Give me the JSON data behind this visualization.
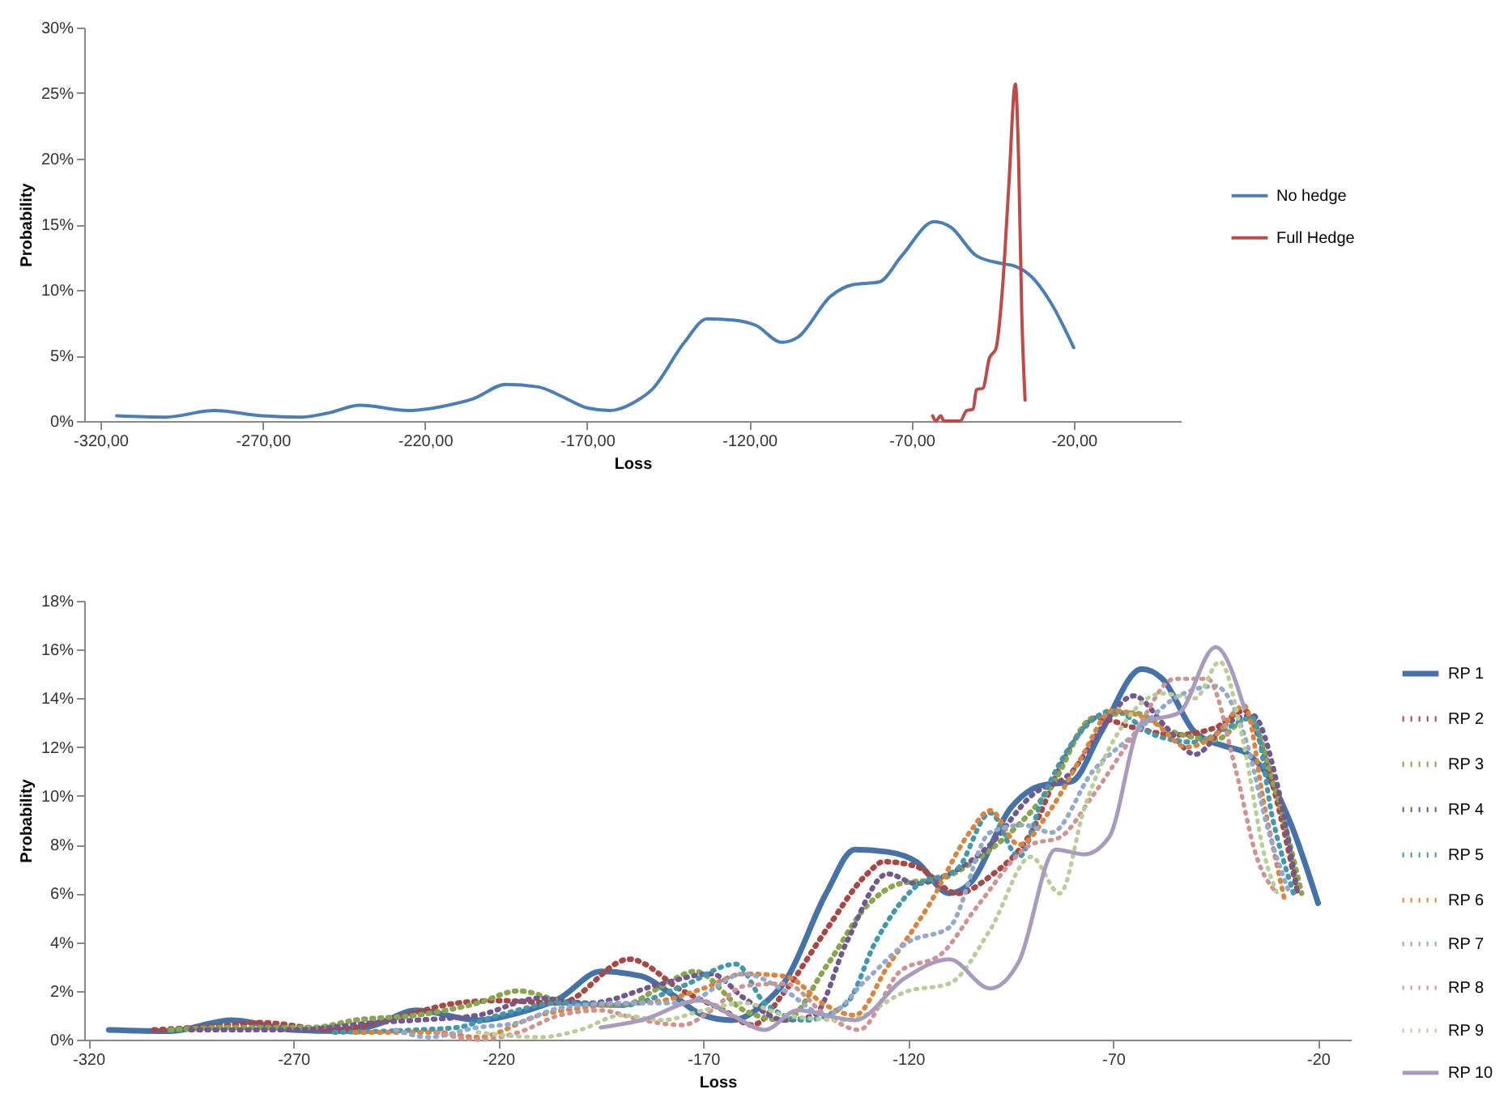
{
  "chart_data": [
    {
      "type": "line",
      "xlabel": "Loss",
      "ylabel": "Probability",
      "xlim": [
        -325,
        13
      ],
      "ylim": [
        0,
        30
      ],
      "xticks": [
        {
          "value": -320,
          "label": "-320,00"
        },
        {
          "value": -270,
          "label": "-270,00"
        },
        {
          "value": -220,
          "label": "-220,00"
        },
        {
          "value": -170,
          "label": "-170,00"
        },
        {
          "value": -120,
          "label": "-120,00"
        },
        {
          "value": -70,
          "label": "-70,00"
        },
        {
          "value": -20,
          "label": "-20,00"
        }
      ],
      "yticks": [
        {
          "value": 0,
          "label": "0%"
        },
        {
          "value": 5,
          "label": "5%"
        },
        {
          "value": 10,
          "label": "10%"
        },
        {
          "value": 15,
          "label": "15%"
        },
        {
          "value": 20,
          "label": "20%"
        },
        {
          "value": 25,
          "label": "25%"
        },
        {
          "value": 30,
          "label": "30%"
        }
      ],
      "grid": false,
      "legend": "right",
      "line_style": "solid",
      "series": [
        {
          "name": "No hedge",
          "color": "#4a7ebb",
          "x": [
            -315,
            -300,
            -285,
            -270,
            -258,
            -250,
            -240,
            -225,
            -215,
            -205,
            -195,
            -185,
            -178,
            -170,
            -163,
            -155,
            -150,
            -140,
            -133,
            -125,
            -118,
            -110,
            -105,
            -95,
            -88,
            -80,
            -73,
            -63,
            -58,
            -50,
            -42,
            -38,
            -33,
            -27,
            -20
          ],
          "values": [
            0.4,
            0.3,
            0.8,
            0.4,
            0.3,
            0.6,
            1.2,
            0.8,
            1.1,
            1.7,
            2.8,
            2.6,
            1.9,
            1.0,
            0.8,
            1.5,
            2.4,
            6.0,
            7.8,
            7.7,
            7.3,
            6.0,
            6.4,
            9.5,
            10.4,
            10.6,
            12.6,
            15.2,
            14.8,
            12.6,
            12.0,
            11.8,
            11.0,
            9.0,
            5.6
          ]
        },
        {
          "name": "Full Hedge",
          "color": "#be4b48",
          "x": [
            -63.5,
            -62.5,
            -61,
            -60,
            -55,
            -53,
            -51,
            -50,
            -48,
            -46,
            -44,
            -42,
            -40,
            -38,
            -37,
            -36,
            -35
          ],
          "values": [
            0.4,
            0,
            0.4,
            0,
            0,
            0.8,
            0.9,
            2.4,
            2.5,
            4.8,
            5.5,
            10,
            18,
            25.7,
            20,
            8,
            1.6
          ]
        }
      ]
    },
    {
      "type": "line",
      "xlabel": "Loss",
      "ylabel": "Probability",
      "xlim": [
        -321,
        -12
      ],
      "ylim": [
        0,
        18
      ],
      "xticks": [
        -320,
        -270,
        -220,
        -170,
        -120,
        -70,
        -20
      ],
      "yticks": [
        {
          "value": 0,
          "label": "0%"
        },
        {
          "value": 2,
          "label": "2%"
        },
        {
          "value": 4,
          "label": "4%"
        },
        {
          "value": 6,
          "label": "6%"
        },
        {
          "value": 8,
          "label": "8%"
        },
        {
          "value": 10,
          "label": "10%"
        },
        {
          "value": 12,
          "label": "12%"
        },
        {
          "value": 14,
          "label": "14%"
        },
        {
          "value": 16,
          "label": "16%"
        },
        {
          "value": 18,
          "label": "18%"
        }
      ],
      "grid": false,
      "legend": "right",
      "series": [
        {
          "name": "RP 1",
          "color": "#4572a7",
          "line_style": "solid",
          "x": [
            -315,
            -300,
            -285,
            -270,
            -258,
            -250,
            -240,
            -225,
            -215,
            -205,
            -195,
            -185,
            -178,
            -170,
            -163,
            -155,
            -150,
            -140,
            -133,
            -125,
            -118,
            -110,
            -105,
            -95,
            -88,
            -80,
            -73,
            -63,
            -58,
            -50,
            -42,
            -38,
            -33,
            -27,
            -20
          ],
          "values": [
            0.4,
            0.35,
            0.8,
            0.4,
            0.35,
            0.6,
            1.2,
            0.8,
            1.1,
            1.7,
            2.8,
            2.6,
            1.9,
            1.0,
            0.8,
            1.5,
            2.4,
            6.0,
            7.8,
            7.7,
            7.3,
            6.0,
            6.4,
            9.5,
            10.4,
            10.6,
            12.6,
            15.2,
            14.8,
            12.6,
            12.0,
            11.8,
            11.0,
            9.0,
            5.6
          ]
        },
        {
          "name": "RP 2",
          "color": "#aa4643",
          "line_style": "dotted",
          "x": [
            -304,
            -285,
            -278,
            -260,
            -245,
            -230,
            -220,
            -205,
            -188,
            -175,
            -165,
            -158,
            -150,
            -140,
            -130,
            -126,
            -118,
            -108,
            -100,
            -90,
            -82,
            -74,
            -65,
            -55,
            -45,
            -38,
            -32,
            -25
          ],
          "values": [
            0.4,
            0.6,
            0.7,
            0.4,
            0.9,
            1.5,
            1.6,
            1.5,
            3.3,
            2.0,
            1.2,
            0.6,
            2.0,
            4.5,
            6.8,
            7.3,
            7.1,
            6.0,
            6.7,
            8.5,
            11.5,
            13.2,
            12.8,
            12.5,
            12.8,
            13.5,
            11,
            6
          ]
        },
        {
          "name": "RP 3",
          "color": "#89a54e",
          "line_style": "dotted",
          "x": [
            -300,
            -285,
            -265,
            -255,
            -240,
            -225,
            -215,
            -205,
            -190,
            -180,
            -172,
            -160,
            -150,
            -140,
            -130,
            -122,
            -112,
            -105,
            -95,
            -85,
            -75,
            -65,
            -55,
            -45,
            -37,
            -30,
            -24
          ],
          "values": [
            0.4,
            0.5,
            0.5,
            0.8,
            1.0,
            1.5,
            2.0,
            1.6,
            1.4,
            2.2,
            2.8,
            1.2,
            0.8,
            3,
            5.5,
            6.4,
            6.6,
            7.2,
            8.5,
            10.4,
            13.2,
            13.4,
            12.6,
            12.3,
            13.2,
            10,
            6
          ]
        },
        {
          "name": "RP 4",
          "color": "#71588f",
          "line_style": "dotted",
          "x": [
            -295,
            -270,
            -250,
            -240,
            -225,
            -210,
            -198,
            -180,
            -168,
            -160,
            -150,
            -143,
            -135,
            -125,
            -118,
            -110,
            -100,
            -90,
            -80,
            -72,
            -65,
            -57,
            -50,
            -42,
            -36,
            -30,
            -25
          ],
          "values": [
            0.4,
            0.4,
            0.7,
            0.8,
            1.0,
            1.7,
            1.5,
            2.3,
            2.7,
            1.7,
            0.8,
            1.0,
            4.0,
            6.8,
            6.4,
            6.8,
            8.0,
            10.0,
            11.0,
            13.0,
            14.1,
            12.8,
            11.7,
            13.0,
            13.3,
            10.5,
            6.0
          ]
        },
        {
          "name": "RP 5",
          "color": "#4198af",
          "line_style": "dotted",
          "x": [
            -260,
            -240,
            -230,
            -220,
            -205,
            -190,
            -175,
            -162,
            -155,
            -145,
            -135,
            -128,
            -118,
            -108,
            -100,
            -93,
            -87,
            -78,
            -70,
            -60,
            -50,
            -42,
            -36,
            -31,
            -26
          ],
          "values": [
            0.3,
            0.4,
            0.5,
            1.0,
            1.5,
            1.4,
            2.2,
            3.1,
            1.5,
            0.8,
            1.5,
            4,
            6.3,
            7.0,
            9.3,
            7.5,
            10,
            12.6,
            13.5,
            12.5,
            12.2,
            12.8,
            13.2,
            9,
            6
          ]
        },
        {
          "name": "RP 6",
          "color": "#db843d",
          "line_style": "dotted",
          "x": [
            -255,
            -235,
            -225,
            -210,
            -195,
            -180,
            -170,
            -160,
            -150,
            -140,
            -133,
            -125,
            -115,
            -105,
            -100,
            -93,
            -85,
            -78,
            -70,
            -60,
            -52,
            -45,
            -38,
            -33,
            -28
          ],
          "values": [
            0.3,
            0.3,
            0.1,
            1.0,
            1.4,
            1.6,
            2.1,
            2.7,
            2.6,
            1.4,
            1.0,
            3,
            5.5,
            8.5,
            9.4,
            8.0,
            9.5,
            11.5,
            13.5,
            13.0,
            12.0,
            12.5,
            13.7,
            9.5,
            5.6
          ]
        },
        {
          "name": "RP 7",
          "color": "#93a9cf",
          "line_style": "dotted",
          "x": [
            -245,
            -237,
            -225,
            -215,
            -205,
            -190,
            -175,
            -160,
            -150,
            -140,
            -130,
            -120,
            -110,
            -100,
            -92,
            -85,
            -75,
            -65,
            -55,
            -45,
            -38,
            -32,
            -27
          ],
          "values": [
            0.4,
            0.1,
            0.5,
            0.7,
            1.3,
            1.5,
            1.5,
            2.7,
            2.0,
            1.0,
            2.5,
            4.0,
            4.6,
            8.5,
            8.8,
            8.5,
            11.0,
            12.5,
            14.0,
            14.5,
            12.5,
            8.5,
            6
          ]
        },
        {
          "name": "RP 8",
          "color": "#d19392",
          "line_style": "dotted",
          "x": [
            -235,
            -225,
            -215,
            -205,
            -195,
            -185,
            -175,
            -168,
            -160,
            -150,
            -140,
            -132,
            -122,
            -112,
            -103,
            -90,
            -83,
            -75,
            -65,
            -55,
            -47,
            -40,
            -35,
            -30
          ],
          "values": [
            0.3,
            0.0,
            0.3,
            1.0,
            1.2,
            0.8,
            0.6,
            1.2,
            2.2,
            2.3,
            1.0,
            0.4,
            2.8,
            3.5,
            5.5,
            8.0,
            8.3,
            10,
            12.5,
            14.8,
            14.8,
            11,
            7.5,
            6
          ]
        },
        {
          "name": "RP 9",
          "color": "#b9cd96",
          "line_style": "dotted",
          "x": [
            -225,
            -210,
            -200,
            -190,
            -180,
            -170,
            -160,
            -150,
            -135,
            -120,
            -110,
            -100,
            -90,
            -83,
            -77,
            -68,
            -58,
            -50,
            -44,
            -38,
            -33,
            -30
          ],
          "values": [
            0.3,
            0.1,
            0.4,
            1.0,
            0.8,
            1.2,
            1.5,
            1.0,
            0.8,
            2.0,
            2.3,
            4.5,
            7.5,
            6.0,
            9.5,
            12.8,
            14.2,
            14.0,
            15.5,
            12,
            7.5,
            6
          ]
        },
        {
          "name": "RP 10",
          "color": "#a99bbd",
          "line_style": "solid",
          "x": [
            -195,
            -185,
            -171,
            -163,
            -155,
            -147,
            -133,
            -121,
            -110,
            -100,
            -93,
            -84,
            -77,
            -71,
            -63,
            -54,
            -45,
            -38
          ],
          "values": [
            0.5,
            0.8,
            1.6,
            1.0,
            0.4,
            1.2,
            0.8,
            2.5,
            3.3,
            2.1,
            3.2,
            7.8,
            7.6,
            8.3,
            13.0,
            13.4,
            16.1,
            13.6
          ]
        }
      ]
    }
  ]
}
